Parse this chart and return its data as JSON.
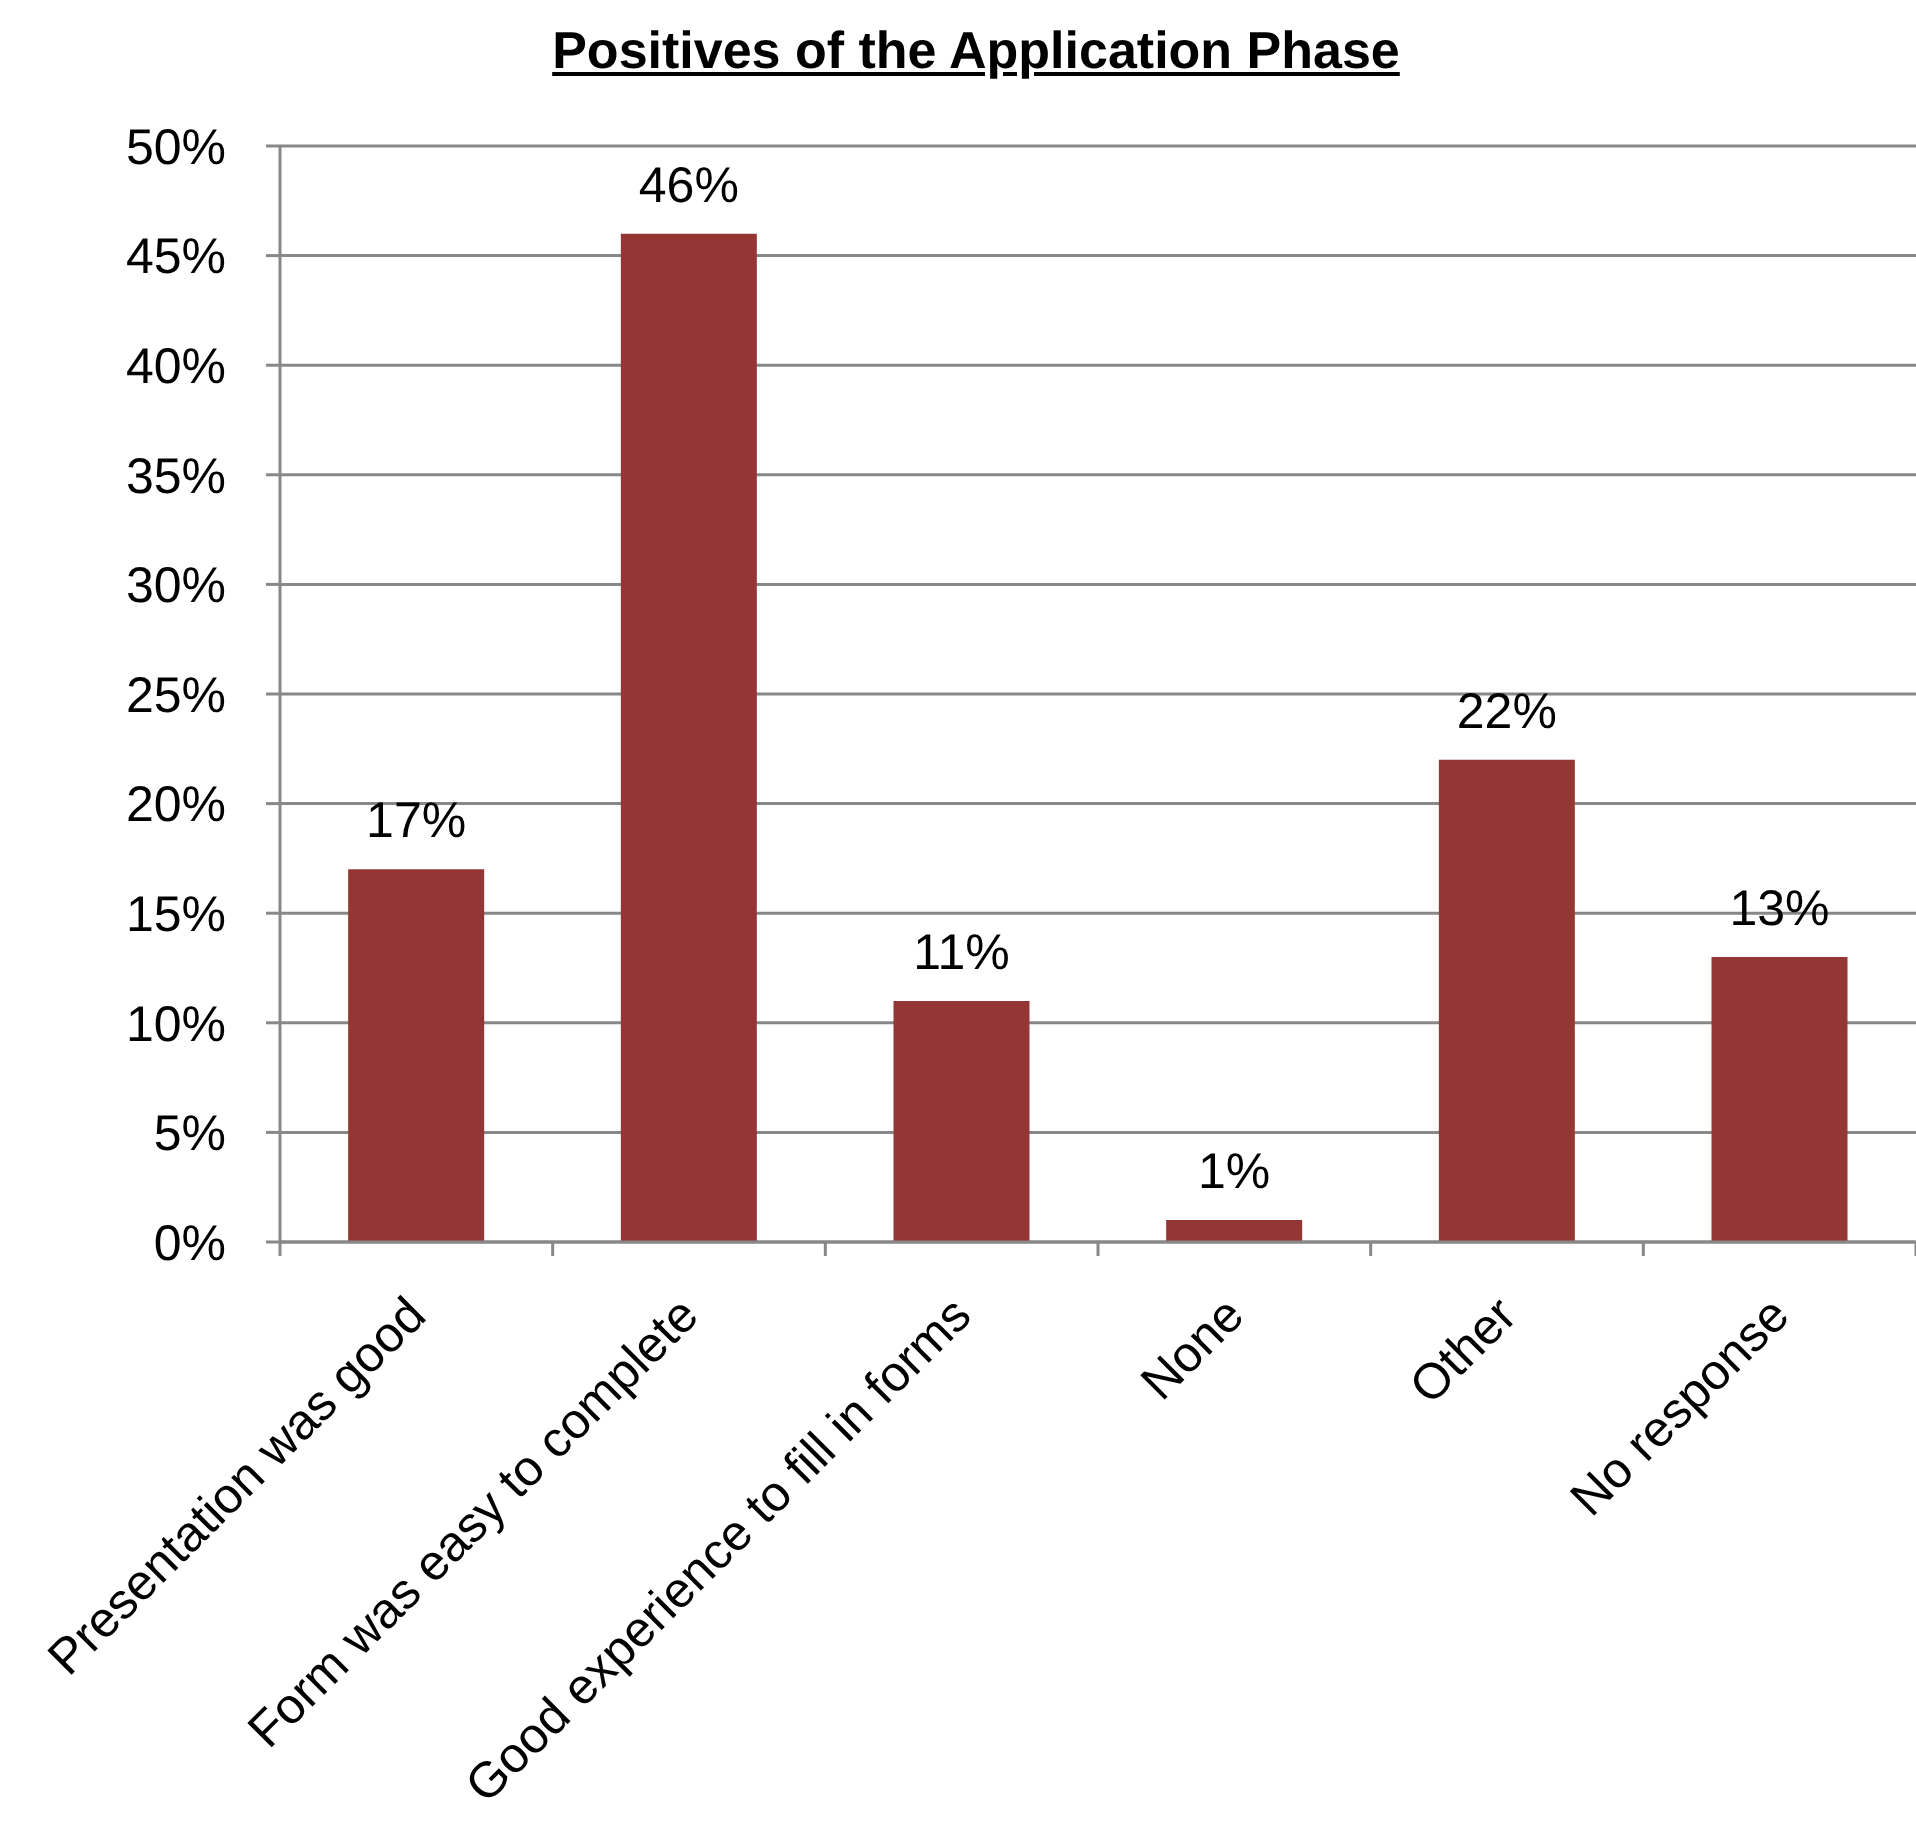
{
  "chart_data": {
    "type": "bar",
    "title": "Positives of the Application Phase",
    "categories": [
      "Presentation was good",
      "Form was easy to complete",
      "Good experience to fill in forms",
      "None",
      "Other",
      "No response"
    ],
    "values": [
      17,
      46,
      11,
      1,
      22,
      13
    ],
    "color": "#943634",
    "value_labels": [
      "17%",
      "46%",
      "11%",
      "1%",
      "22%",
      "13%"
    ],
    "ylim": [
      0,
      50
    ],
    "yticks": [
      {
        "value": 0,
        "label": "0%"
      },
      {
        "value": 5,
        "label": "5%"
      },
      {
        "value": 10,
        "label": "10%"
      },
      {
        "value": 15,
        "label": "15%"
      },
      {
        "value": 20,
        "label": "20%"
      },
      {
        "value": 25,
        "label": "25%"
      },
      {
        "value": 30,
        "label": "30%"
      },
      {
        "value": 35,
        "label": "35%"
      },
      {
        "value": 40,
        "label": "40%"
      },
      {
        "value": 45,
        "label": "45%"
      },
      {
        "value": 50,
        "label": "50%"
      }
    ],
    "grid": "y"
  }
}
